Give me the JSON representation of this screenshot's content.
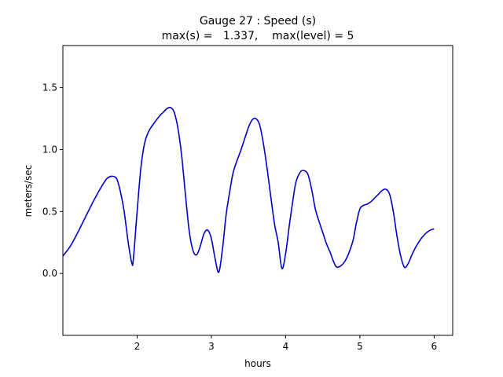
{
  "chart_data": {
    "type": "line",
    "title_line1": "Gauge 27 : Speed (s)",
    "title_line2": "max(s) =   1.337,    max(level) = 5",
    "xlabel": "hours",
    "ylabel": "meters/sec",
    "xlim": [
      1.0,
      6.25
    ],
    "ylim": [
      -0.5,
      1.84
    ],
    "xticks": [
      2,
      3,
      4,
      5,
      6
    ],
    "xtick_labels": [
      "2",
      "3",
      "4",
      "5",
      "6"
    ],
    "yticks": [
      0.0,
      0.5,
      1.0,
      1.5
    ],
    "ytick_labels": [
      "0.0",
      "0.5",
      "1.0",
      "1.5"
    ],
    "grid": false,
    "series": [
      {
        "color": "#0000cc",
        "x": [
          1.0,
          1.1,
          1.2,
          1.3,
          1.4,
          1.5,
          1.6,
          1.7,
          1.75,
          1.82,
          1.88,
          1.93,
          1.95,
          2.0,
          2.05,
          2.1,
          2.15,
          2.2,
          2.3,
          2.35,
          2.4,
          2.45,
          2.5,
          2.55,
          2.6,
          2.65,
          2.7,
          2.75,
          2.8,
          2.85,
          2.9,
          2.95,
          3.0,
          3.05,
          3.1,
          3.15,
          3.2,
          3.25,
          3.3,
          3.4,
          3.5,
          3.55,
          3.6,
          3.65,
          3.7,
          3.75,
          3.8,
          3.85,
          3.9,
          3.95,
          4.0,
          4.05,
          4.1,
          4.14,
          4.2,
          4.25,
          4.3,
          4.35,
          4.4,
          4.45,
          4.5,
          4.55,
          4.6,
          4.65,
          4.7,
          4.8,
          4.9,
          4.95,
          5.0,
          5.05,
          5.1,
          5.15,
          5.2,
          5.25,
          5.3,
          5.35,
          5.4,
          5.45,
          5.5,
          5.55,
          5.6,
          5.65,
          5.7,
          5.75,
          5.8,
          5.85,
          5.9,
          5.95,
          6.0
        ],
        "y": [
          0.14,
          0.22,
          0.33,
          0.45,
          0.57,
          0.68,
          0.77,
          0.78,
          0.72,
          0.52,
          0.25,
          0.08,
          0.12,
          0.5,
          0.85,
          1.05,
          1.14,
          1.19,
          1.27,
          1.3,
          1.33,
          1.34,
          1.3,
          1.17,
          0.95,
          0.64,
          0.35,
          0.19,
          0.15,
          0.22,
          0.32,
          0.35,
          0.28,
          0.12,
          0.01,
          0.2,
          0.48,
          0.67,
          0.83,
          1.0,
          1.18,
          1.24,
          1.25,
          1.2,
          1.05,
          0.85,
          0.62,
          0.4,
          0.25,
          0.04,
          0.16,
          0.39,
          0.6,
          0.74,
          0.82,
          0.83,
          0.8,
          0.68,
          0.52,
          0.42,
          0.33,
          0.24,
          0.17,
          0.09,
          0.05,
          0.1,
          0.25,
          0.4,
          0.52,
          0.55,
          0.56,
          0.58,
          0.61,
          0.64,
          0.67,
          0.68,
          0.64,
          0.5,
          0.3,
          0.14,
          0.05,
          0.08,
          0.15,
          0.21,
          0.26,
          0.3,
          0.33,
          0.35,
          0.36
        ]
      }
    ]
  }
}
